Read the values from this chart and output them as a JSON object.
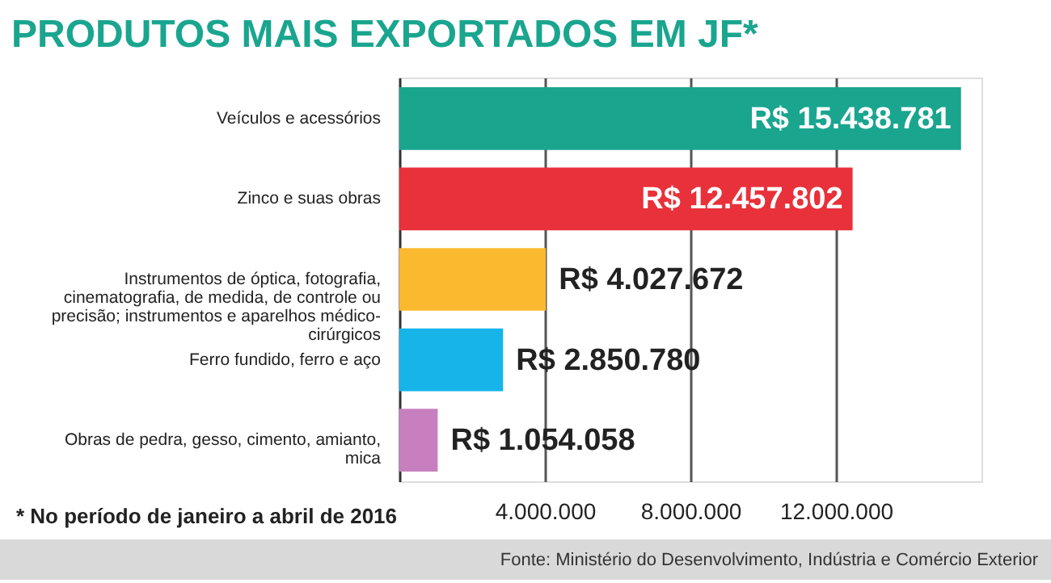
{
  "chart_data": {
    "type": "bar",
    "orientation": "horizontal",
    "title": "PRODUTOS MAIS EXPORTADOS EM JF*",
    "categories": [
      "Veículos e acessórios",
      "Zinco e suas obras",
      "Instrumentos de óptica, fotografia, cinematografia, de medida, de controle ou precisão; instrumentos e aparelhos médico-cirúrgicos",
      "Ferro fundido, ferro e aço",
      "Obras de pedra, gesso, cimento, amianto, mica"
    ],
    "values": [
      15438781,
      12457802,
      4027672,
      2850780,
      1054058
    ],
    "colors": [
      "#1aa58f",
      "#e8313a",
      "#fbb92f",
      "#17b4ea",
      "#c77fbf"
    ],
    "value_labels": [
      "R$ 15.438.781",
      "R$ 12.457.802",
      "R$ 4.027.672",
      "R$ 2.850.780",
      "R$ 1.054.058"
    ],
    "xlim": [
      0,
      16000000
    ],
    "xticks": [
      {
        "value": 4000000,
        "label": "4.000.000"
      },
      {
        "value": 8000000,
        "label": "8.000.000"
      },
      {
        "value": 12000000,
        "label": "12.000.000"
      }
    ],
    "grid": "x",
    "annotations": [
      "* No período de janeiro a abril de 2016",
      "Fonte: Ministério do Desenvolvimento, Indústria e Comércio Exterior"
    ]
  }
}
